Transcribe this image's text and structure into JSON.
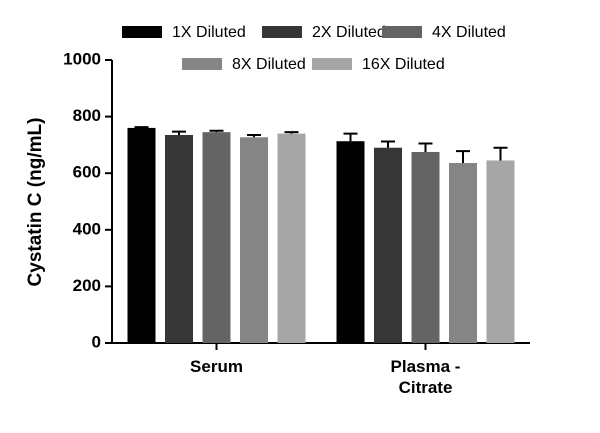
{
  "chart_data": {
    "type": "bar",
    "y_label": "Cystatin C (ng/mL)",
    "categories": [
      "Serum",
      "Plasma - Citrate"
    ],
    "series": [
      {
        "name": "1X Diluted",
        "color": "#000000",
        "values": [
          760,
          713
        ],
        "errors": [
          3,
          27
        ]
      },
      {
        "name": "2X Diluted",
        "color": "#363636",
        "values": [
          735,
          690
        ],
        "errors": [
          12,
          22
        ]
      },
      {
        "name": "4X Diluted",
        "color": "#646464",
        "values": [
          745,
          675
        ],
        "errors": [
          5,
          30
        ]
      },
      {
        "name": "8X Diluted",
        "color": "#858585",
        "values": [
          727,
          636
        ],
        "errors": [
          8,
          42
        ]
      },
      {
        "name": "16X Diluted",
        "color": "#a6a6a6",
        "values": [
          740,
          645
        ],
        "errors": [
          5,
          45
        ]
      }
    ],
    "ylim": [
      0,
      1000
    ],
    "yticks": [
      0,
      200,
      400,
      600,
      800,
      1000
    ]
  }
}
